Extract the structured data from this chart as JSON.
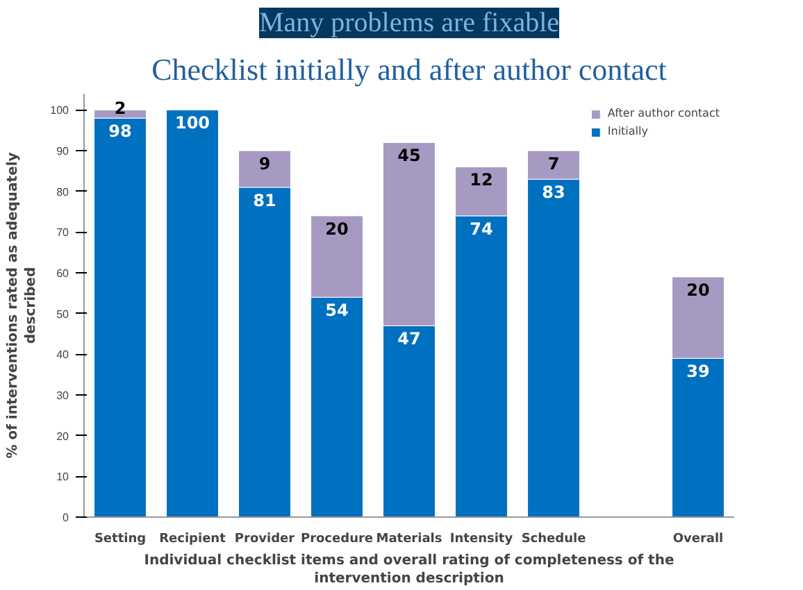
{
  "chart_data": {
    "type": "bar",
    "stacked": true,
    "title": "Many problems are fixable",
    "subtitle": "Checklist initially and after author contact",
    "xlabel": "Individual checklist items and overall rating of completeness of the\nintervention description",
    "ylabel": "% of interventions rated as adequately\ndescribed",
    "categories": [
      "Setting",
      "Recipient",
      "Provider",
      "Procedure",
      "Materials",
      "Intensity",
      "Schedule",
      null,
      "Overall"
    ],
    "series": [
      {
        "name": "Initially",
        "color": "#0070c0",
        "values": [
          98,
          100,
          81,
          54,
          47,
          74,
          83,
          null,
          39
        ]
      },
      {
        "name": "After author contact",
        "color": "#a69ac2",
        "values": [
          2,
          null,
          9,
          20,
          45,
          12,
          7,
          null,
          20
        ]
      }
    ],
    "ylim": [
      0,
      104
    ],
    "yticks": [
      0,
      10,
      20,
      30,
      40,
      50,
      60,
      70,
      80,
      90,
      100
    ],
    "data_labels": true,
    "legend": "top right",
    "grid": false
  }
}
